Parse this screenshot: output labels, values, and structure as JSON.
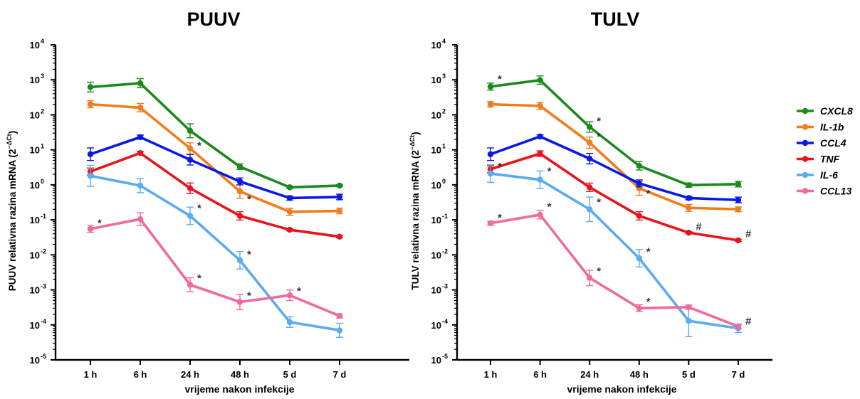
{
  "chart_data": [
    {
      "type": "line",
      "title": "PUUV",
      "xlabel": "vrijeme nakon infekcije",
      "ylabel_prefix": "PUUV relativna razina mRNA (2",
      "ylabel_exp": "−ΔCt",
      "ylabel_suffix": ")",
      "yscale": "log",
      "ylim_exp": [
        -5,
        4
      ],
      "yticks_base": "10",
      "yticks_exp": [
        "-5",
        "-4",
        "-3",
        "-2",
        "-1",
        "0",
        "1",
        "2",
        "3",
        "4"
      ],
      "categories": [
        "1 h",
        "6 h",
        "24 h",
        "48 h",
        "5 d",
        "7 d"
      ],
      "series": [
        {
          "name": "CXCL8",
          "color": "#1a8a1a",
          "values": [
            620,
            800,
            35,
            3.3,
            0.85,
            0.95
          ],
          "err_exp": [
            0.14,
            0.13,
            0.2,
            0.08,
            0.03,
            0.03
          ]
        },
        {
          "name": "IL-1b",
          "color": "#f07c1c",
          "values": [
            200,
            160,
            11,
            0.65,
            0.17,
            0.18
          ],
          "err_exp": [
            0.1,
            0.12,
            0.16,
            0.2,
            0.1,
            0.08
          ]
        },
        {
          "name": "CCL4",
          "color": "#0a18e6",
          "values": [
            7.5,
            23,
            5.2,
            1.25,
            0.42,
            0.45
          ],
          "err_exp": [
            0.18,
            0.06,
            0.15,
            0.1,
            0.06,
            0.08
          ]
        },
        {
          "name": "TNF",
          "color": "#e8141c",
          "values": [
            2.4,
            8.1,
            0.8,
            0.13,
            0.052,
            0.033
          ],
          "err_exp": [
            0.1,
            0.05,
            0.15,
            0.12,
            0.03,
            0.03
          ]
        },
        {
          "name": "IL-6",
          "color": "#5aabf0",
          "values": [
            1.8,
            0.95,
            0.13,
            0.007,
            0.00012,
            7e-05
          ],
          "err_exp": [
            0.3,
            0.2,
            0.25,
            0.25,
            0.15,
            0.2
          ]
        },
        {
          "name": "CCL13",
          "color": "#f06a9c",
          "values": [
            0.055,
            0.105,
            0.0014,
            0.00045,
            0.0007,
            0.00018
          ],
          "err_exp": [
            0.1,
            0.18,
            0.2,
            0.22,
            0.15,
            0.06
          ]
        }
      ],
      "annotations": [
        {
          "text": "*",
          "x": "1 h",
          "y": 0.085
        },
        {
          "text": "*",
          "x": "24 h",
          "y": 14
        },
        {
          "text": "*",
          "x": "24 h",
          "y": 0.23
        },
        {
          "text": "*",
          "x": "24 h",
          "y": 0.0023
        },
        {
          "text": "*",
          "x": "48 h",
          "y": 0.41
        },
        {
          "text": "*",
          "x": "48 h",
          "y": 0.011
        },
        {
          "text": "*",
          "x": "48 h",
          "y": 0.00072
        },
        {
          "text": "*",
          "x": "5 d",
          "y": 0.00098
        }
      ]
    },
    {
      "type": "line",
      "title": "TULV",
      "xlabel": "vrijeme nakon infekcije",
      "ylabel_prefix": "TULV relativna razina mRNA (2",
      "ylabel_exp": "−ΔCt",
      "ylabel_suffix": ")",
      "yscale": "log",
      "ylim_exp": [
        -5,
        4
      ],
      "yticks_base": "10",
      "yticks_exp": [
        "-5",
        "-4",
        "-3",
        "-2",
        "-1",
        "0",
        "1",
        "2",
        "3",
        "4"
      ],
      "categories": [
        "1 h",
        "6 h",
        "24 h",
        "48 h",
        "5 d",
        "7 d"
      ],
      "series": [
        {
          "name": "CXCL8",
          "color": "#1a8a1a",
          "values": [
            640,
            980,
            45,
            3.5,
            0.98,
            1.05
          ],
          "err_exp": [
            0.1,
            0.12,
            0.15,
            0.12,
            0.06,
            0.08
          ]
        },
        {
          "name": "IL-1b",
          "color": "#f07c1c",
          "values": [
            200,
            180,
            16,
            0.8,
            0.22,
            0.2
          ],
          "err_exp": [
            0.08,
            0.1,
            0.16,
            0.2,
            0.1,
            0.07
          ]
        },
        {
          "name": "CCL4",
          "color": "#0a18e6",
          "values": [
            7.5,
            24,
            5.6,
            1.1,
            0.42,
            0.37
          ],
          "err_exp": [
            0.18,
            0.05,
            0.15,
            0.1,
            0.05,
            0.08
          ]
        },
        {
          "name": "TNF",
          "color": "#e8141c",
          "values": [
            2.8,
            7.8,
            0.85,
            0.13,
            0.043,
            0.026
          ],
          "err_exp": [
            0.1,
            0.08,
            0.12,
            0.12,
            0.03,
            0.03
          ]
        },
        {
          "name": "IL-6",
          "color": "#5aabf0",
          "values": [
            2.1,
            1.4,
            0.2,
            0.008,
            0.00013,
            8e-05
          ],
          "err_exp": [
            0.25,
            0.25,
            0.35,
            0.25,
            0.45,
            0.12
          ]
        },
        {
          "name": "CCL13",
          "color": "#f06a9c",
          "values": [
            0.08,
            0.14,
            0.0022,
            0.0003,
            0.00032,
            9e-05
          ],
          "err_exp": [
            0.06,
            0.12,
            0.22,
            0.1,
            0.06,
            0.05
          ]
        }
      ],
      "annotations": [
        {
          "text": "*",
          "x": "1 h",
          "y": 1100
        },
        {
          "text": "*",
          "x": "1 h",
          "y": 3.5
        },
        {
          "text": "*",
          "x": "1 h",
          "y": 0.12
        },
        {
          "text": "*",
          "x": "6 h",
          "y": 2.6
        },
        {
          "text": "*",
          "x": "6 h",
          "y": 0.25
        },
        {
          "text": "*",
          "x": "24 h",
          "y": 70
        },
        {
          "text": "*",
          "x": "24 h",
          "y": 25
        },
        {
          "text": "*",
          "x": "24 h",
          "y": 0.34
        },
        {
          "text": "*",
          "x": "24 h",
          "y": 0.0036
        },
        {
          "text": "*",
          "x": "48 h",
          "y": 0.6
        },
        {
          "text": "*",
          "x": "48 h",
          "y": 0.013
        },
        {
          "text": "*",
          "x": "48 h",
          "y": 0.00048
        },
        {
          "text": "#",
          "x": "5 d",
          "y": 0.068
        },
        {
          "text": "#",
          "x": "7 d",
          "y": 0.042
        },
        {
          "text": "#",
          "x": "7 d",
          "y": 0.000135
        }
      ]
    }
  ],
  "legend": {
    "placement": "right",
    "items": [
      "CXCL8",
      "IL-1b",
      "CCL4",
      "TNF",
      "IL-6",
      "CCL13"
    ],
    "colors": [
      "#1a8a1a",
      "#f07c1c",
      "#0a18e6",
      "#e8141c",
      "#5aabf0",
      "#f06a9c"
    ]
  }
}
